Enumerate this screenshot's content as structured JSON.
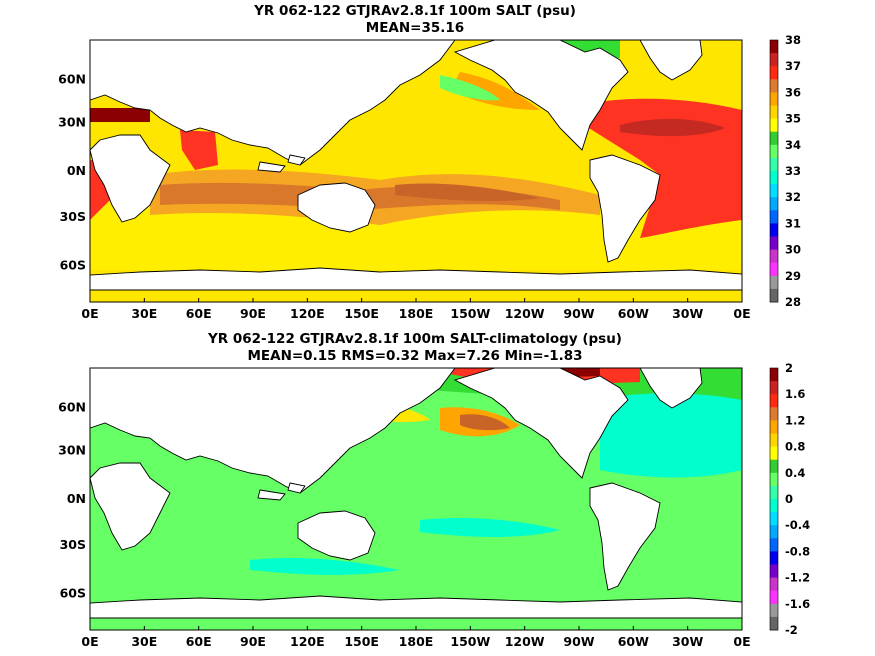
{
  "panels": [
    {
      "title": "YR 062-122 GTJRAv2.8.1f 100m SALT (psu)",
      "subtitle": "MEAN=35.16",
      "colorbar": {
        "labels": [
          "38",
          "37",
          "36",
          "35",
          "34",
          "33",
          "32",
          "31",
          "30",
          "29",
          "28"
        ],
        "colors": [
          "#8b0000",
          "#cc2222",
          "#ff2a10",
          "#e07a30",
          "#ffa500",
          "#ffd400",
          "#ffff00",
          "#33cc33",
          "#66ff66",
          "#33ffaa",
          "#00ffcc",
          "#00ddff",
          "#00aaff",
          "#0066ff",
          "#0000ee",
          "#7700cc",
          "#cc33cc",
          "#ff33ff",
          "#999999",
          "#666666"
        ]
      }
    },
    {
      "title": "YR 062-122 GTJRAv2.8.1f 100m SALT-climatology (psu)",
      "subtitle": "MEAN=0.15   RMS=0.32   Max=7.26   Min=-1.83",
      "colorbar": {
        "labels": [
          "2",
          "1.6",
          "1.2",
          "0.8",
          "0.4",
          "0",
          "-0.4",
          "-0.8",
          "-1.2",
          "-1.6",
          "-2"
        ],
        "colors": [
          "#8b0000",
          "#cc2222",
          "#ff2a10",
          "#e07a30",
          "#ffa500",
          "#ffd400",
          "#ffff00",
          "#33cc33",
          "#66ff66",
          "#33ffaa",
          "#00ffcc",
          "#00ddff",
          "#00aaff",
          "#0066ff",
          "#0000ee",
          "#7700cc",
          "#cc33cc",
          "#ff33ff",
          "#999999",
          "#666666"
        ]
      }
    }
  ],
  "lon_labels": [
    "0E",
    "30E",
    "60E",
    "90E",
    "120E",
    "150E",
    "180E",
    "150W",
    "120W",
    "90W",
    "60W",
    "30W",
    "0E"
  ],
  "lat_labels": [
    "60N",
    "30N",
    "0N",
    "30S",
    "60S"
  ],
  "colors": {
    "land": "#ffffff",
    "coast": "#000000"
  }
}
